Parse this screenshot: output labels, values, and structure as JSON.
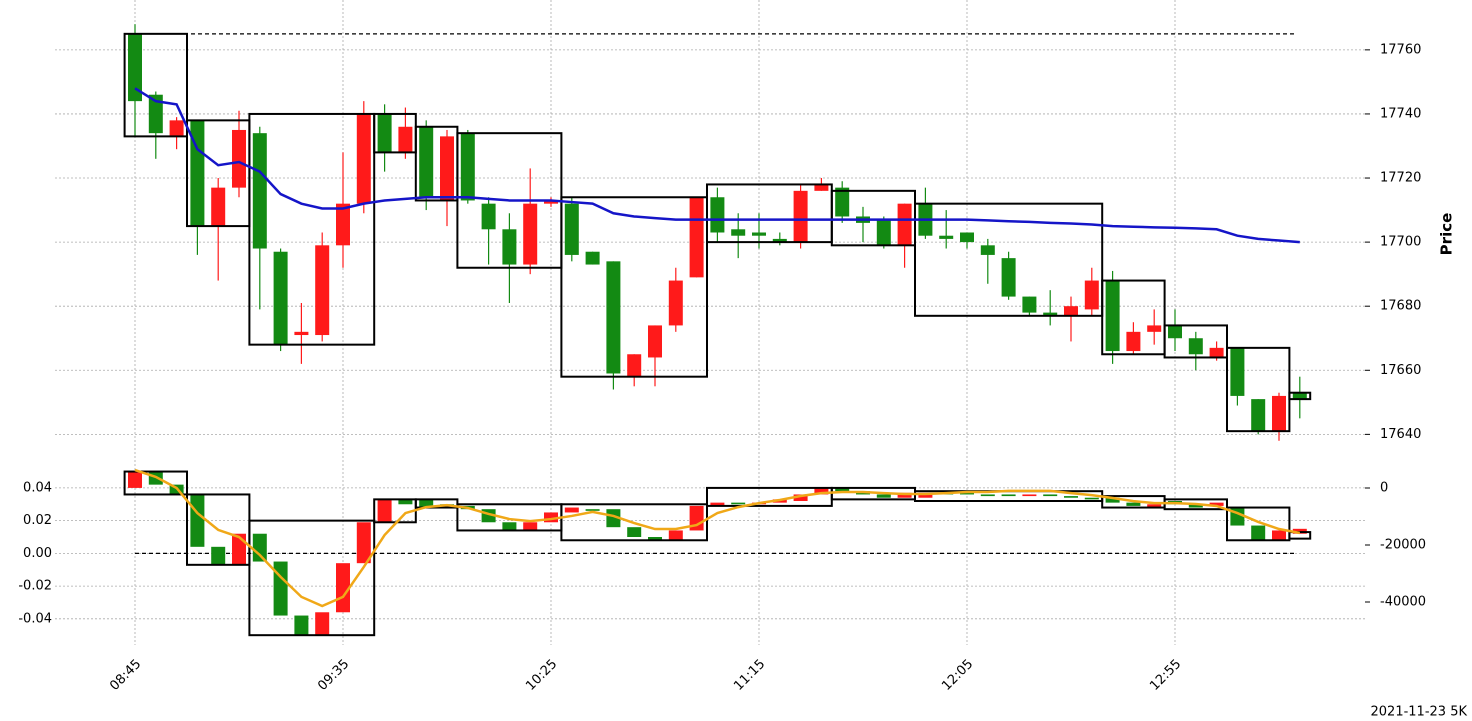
{
  "footer": "2021-11-23 5K",
  "chart_data": [
    {
      "type": "candlestick",
      "ylabel": "Price",
      "categories": [
        "08:45",
        null,
        null,
        null,
        null,
        null,
        null,
        null,
        null,
        null,
        "09:35",
        null,
        null,
        null,
        null,
        null,
        null,
        null,
        null,
        null,
        "10:25",
        null,
        null,
        null,
        null,
        null,
        null,
        null,
        null,
        null,
        "11:15",
        null,
        null,
        null,
        null,
        null,
        null,
        null,
        null,
        null,
        "12:05",
        null,
        null,
        null,
        null,
        null,
        null,
        null,
        null,
        null,
        "12:55",
        null,
        null,
        null,
        null,
        null,
        null
      ],
      "open": [
        17765,
        17746,
        17733,
        17738,
        17705,
        17717,
        17734,
        17697,
        17671,
        17671,
        17699,
        17712,
        17740,
        17728,
        17736,
        17713,
        17734,
        17712,
        17704,
        17693,
        17712,
        17712,
        17697,
        17694,
        17658,
        17664,
        17674,
        17689,
        17714,
        17704,
        17703,
        17701,
        17700,
        17716,
        17717,
        17708,
        17707,
        17699,
        17712,
        17702,
        17703,
        17699,
        17695,
        17683,
        17678,
        17677,
        17679,
        17688,
        17666,
        17672,
        17674,
        17670,
        17664,
        17667,
        17651,
        17641,
        17653
      ],
      "high": [
        17768,
        17747,
        17739,
        17738,
        17720,
        17741,
        17736,
        17698,
        17681,
        17703,
        17728,
        17744,
        17743,
        17742,
        17738,
        17735,
        17735,
        17714,
        17709,
        17723,
        17714,
        17714,
        17697,
        17694,
        17665,
        17674,
        17692,
        17714,
        17717,
        17709,
        17709,
        17703,
        17718,
        17720,
        17719,
        17711,
        17708,
        17712,
        17717,
        17710,
        17703,
        17701,
        17697,
        17683,
        17685,
        17683,
        17692,
        17691,
        17675,
        17679,
        17679,
        17672,
        17669,
        17667,
        17651,
        17653,
        17658
      ],
      "low": [
        17733,
        17726,
        17729,
        17696,
        17688,
        17714,
        17679,
        17666,
        17662,
        17669,
        17692,
        17709,
        17722,
        17726,
        17710,
        17705,
        17712,
        17693,
        17681,
        17690,
        17711,
        17694,
        17693,
        17654,
        17655,
        17655,
        17672,
        17689,
        17700,
        17695,
        17698,
        17699,
        17698,
        17716,
        17706,
        17700,
        17698,
        17692,
        17701,
        17698,
        17698,
        17687,
        17682,
        17677,
        17674,
        17669,
        17677,
        17662,
        17665,
        17668,
        17666,
        17660,
        17663,
        17649,
        17640,
        17638,
        17645
      ],
      "close": [
        17744,
        17734,
        17738,
        17705,
        17717,
        17735,
        17698,
        17668,
        17672,
        17699,
        17712,
        17740,
        17728,
        17736,
        17714,
        17733,
        17713,
        17704,
        17693,
        17712,
        17713,
        17696,
        17693,
        17659,
        17665,
        17674,
        17688,
        17714,
        17703,
        17702,
        17702,
        17700,
        17716,
        17718,
        17708,
        17706,
        17699,
        17712,
        17702,
        17701,
        17700,
        17696,
        17683,
        17678,
        17677,
        17680,
        17688,
        17666,
        17672,
        17674,
        17670,
        17665,
        17667,
        17652,
        17641,
        17652,
        17651
      ],
      "up_color": "#ff1a1a",
      "down_color": "#138a13",
      "ma": {
        "color": "#1515c8",
        "values": [
          17748,
          17744,
          17743,
          17729,
          17724,
          17725,
          17722,
          17715,
          17712,
          17710.5,
          17710.5,
          17712,
          17713,
          17713.5,
          17714,
          17714,
          17714,
          17713.5,
          17713,
          17713,
          17713,
          17712.5,
          17712,
          17709,
          17708,
          17707.5,
          17707,
          17707,
          17707,
          17707,
          17707,
          17707,
          17707,
          17707,
          17707,
          17707,
          17707,
          17707,
          17707,
          17707,
          17707,
          17706.8,
          17706.5,
          17706.3,
          17706,
          17705.8,
          17705.5,
          17705,
          17704.8,
          17704.6,
          17704.5,
          17704.3,
          17704,
          17702,
          17701,
          17700.5,
          17700
        ]
      },
      "boxes": [
        {
          "start": 0,
          "end": 2,
          "high": 17765,
          "low": 17733
        },
        {
          "start": 3,
          "end": 5,
          "high": 17738,
          "low": 17705
        },
        {
          "start": 6,
          "end": 11,
          "high": 17740,
          "low": 17668
        },
        {
          "start": 12,
          "end": 13,
          "high": 17740,
          "low": 17728
        },
        {
          "start": 14,
          "end": 15,
          "high": 17736,
          "low": 17713
        },
        {
          "start": 16,
          "end": 20,
          "high": 17734,
          "low": 17692
        },
        {
          "start": 21,
          "end": 27,
          "high": 17714,
          "low": 17658
        },
        {
          "start": 28,
          "end": 33,
          "high": 17718,
          "low": 17700
        },
        {
          "start": 34,
          "end": 37,
          "high": 17716,
          "low": 17699
        },
        {
          "start": 38,
          "end": 46,
          "high": 17712,
          "low": 17677
        },
        {
          "start": 47,
          "end": 49,
          "high": 17688,
          "low": 17665
        },
        {
          "start": 50,
          "end": 52,
          "high": 17674,
          "low": 17664
        },
        {
          "start": 53,
          "end": 55,
          "high": 17667,
          "low": 17641
        },
        {
          "start": 56,
          "end": 56,
          "high": 17653,
          "low": 17651
        }
      ],
      "reference_line": 17765,
      "ylim": [
        17632,
        17774
      ],
      "yticks": [
        17640,
        17660,
        17680,
        17700,
        17720,
        17740,
        17760
      ],
      "grid": true
    },
    {
      "type": "candlestick",
      "open": [
        0.04,
        0.05,
        0.042,
        0.036,
        0.004,
        -0.007,
        0.012,
        -0.005,
        -0.038,
        -0.05,
        -0.036,
        -0.006,
        0.019,
        0.033,
        0.033,
        0.03,
        0.029,
        0.027,
        0.019,
        0.014,
        0.019,
        0.025,
        0.027,
        0.027,
        0.016,
        0.01,
        0.008,
        0.014,
        0.029,
        0.031,
        0.03,
        0.031,
        0.032,
        0.036,
        0.04,
        0.038,
        0.036,
        0.034,
        0.034,
        0.037,
        0.037,
        0.036,
        0.036,
        0.035,
        0.036,
        0.035,
        0.034,
        0.034,
        0.031,
        0.028,
        0.032,
        0.03,
        0.029,
        0.028,
        0.017,
        0.008,
        0.012
      ],
      "close": [
        0.05,
        0.042,
        0.036,
        0.004,
        -0.007,
        0.012,
        -0.005,
        -0.038,
        -0.05,
        -0.036,
        -0.006,
        0.019,
        0.033,
        0.03,
        0.028,
        0.029,
        0.027,
        0.019,
        0.014,
        0.019,
        0.025,
        0.028,
        0.026,
        0.016,
        0.01,
        0.008,
        0.014,
        0.029,
        0.031,
        0.03,
        0.031,
        0.033,
        0.036,
        0.04,
        0.038,
        0.036,
        0.034,
        0.037,
        0.037,
        0.036,
        0.036,
        0.035,
        0.035,
        0.036,
        0.035,
        0.034,
        0.033,
        0.031,
        0.029,
        0.03,
        0.03,
        0.028,
        0.031,
        0.017,
        0.008,
        0.014,
        0.015
      ],
      "up_color": "#ff1a1a",
      "down_color": "#138a13",
      "boxes": [
        {
          "start": 0,
          "end": 2,
          "high": 0.05,
          "low": 0.036
        },
        {
          "start": 3,
          "end": 5,
          "high": 0.036,
          "low": -0.007
        },
        {
          "start": 6,
          "end": 11,
          "high": 0.02,
          "low": -0.05
        },
        {
          "start": 12,
          "end": 13,
          "high": 0.033,
          "low": 0.019
        },
        {
          "start": 14,
          "end": 15,
          "high": 0.033,
          "low": 0.028
        },
        {
          "start": 16,
          "end": 20,
          "high": 0.03,
          "low": 0.014
        },
        {
          "start": 21,
          "end": 27,
          "high": 0.03,
          "low": 0.008
        },
        {
          "start": 28,
          "end": 33,
          "high": 0.04,
          "low": 0.029
        },
        {
          "start": 34,
          "end": 37,
          "high": 0.04,
          "low": 0.033
        },
        {
          "start": 38,
          "end": 46,
          "high": 0.038,
          "low": 0.032
        },
        {
          "start": 47,
          "end": 49,
          "high": 0.035,
          "low": 0.028
        },
        {
          "start": 50,
          "end": 52,
          "high": 0.033,
          "low": 0.027
        },
        {
          "start": 53,
          "end": 55,
          "high": 0.028,
          "low": 0.008
        },
        {
          "start": 56,
          "end": 56,
          "high": 0.013,
          "low": 0.009
        }
      ],
      "reference_line": 0,
      "series": [
        {
          "color": "#f0a818",
          "axis": "y2",
          "values": [
            6300,
            3900,
            0,
            -8800,
            -14700,
            -17200,
            -23500,
            -31200,
            -38200,
            -41400,
            -38200,
            -27700,
            -16500,
            -8800,
            -6700,
            -6000,
            -7000,
            -9100,
            -10900,
            -11600,
            -10900,
            -9800,
            -8400,
            -9800,
            -12300,
            -14400,
            -14400,
            -13000,
            -8800,
            -6700,
            -5300,
            -4200,
            -2800,
            -1800,
            -1400,
            -1400,
            -1800,
            -2100,
            -2100,
            -1800,
            -1400,
            -1400,
            -1000,
            -1000,
            -1000,
            -1800,
            -2500,
            -3500,
            -4600,
            -5300,
            -5300,
            -5600,
            -6300,
            -8800,
            -11900,
            -14400,
            -15800
          ]
        }
      ],
      "ylim": [
        -0.056,
        0.054
      ],
      "yticks": [
        {
          "value": -0.04,
          "label": "-0.04"
        },
        {
          "value": -0.02,
          "label": "-0.02"
        },
        {
          "value": 0,
          "label": "0.00"
        },
        {
          "value": 0.02,
          "label": "0.02"
        },
        {
          "value": 0.04,
          "label": "0.04"
        }
      ],
      "y2lim": [
        -55090,
        8070
      ],
      "y2ticks": [
        -40000,
        -20000,
        0
      ],
      "grid": true
    }
  ]
}
